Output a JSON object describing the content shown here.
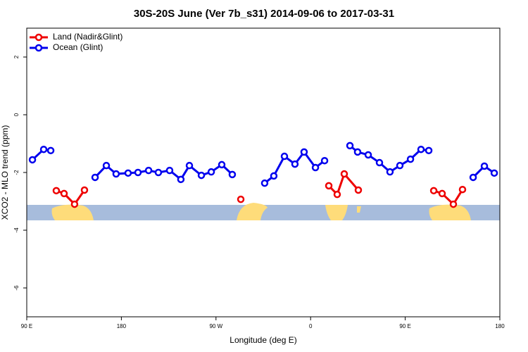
{
  "chart_data": {
    "type": "line",
    "title": "30S-20S June (Ver 7b_s31)   2014-09-06 to 2017-03-31",
    "x_label": "Longitude (deg E)",
    "y_label": "XCO2 - MLO trend (ppm)",
    "xlim": [
      90,
      540
    ],
    "ylim": [
      -7,
      3
    ],
    "xticks": [
      {
        "value": 90,
        "label": "90 E"
      },
      {
        "value": 180,
        "label": "180"
      },
      {
        "value": 270,
        "label": "90 W"
      },
      {
        "value": 360,
        "label": "0"
      },
      {
        "value": 450,
        "label": "90 E"
      },
      {
        "value": 540,
        "label": "180"
      }
    ],
    "yticks": [
      -6,
      -4,
      -2,
      0,
      2
    ],
    "legend": "top-left",
    "series": [
      {
        "name": "Land (Nadir&Glint)",
        "color": "#ee0000",
        "x": [
          118.1,
          125.5,
          135.5,
          144.9,
          null,
          293.6,
          null,
          377.3,
          385.3,
          392.0,
          405.4,
          null,
          477.1,
          485.1,
          495.8,
          504.5
        ],
        "values": [
          -2.63,
          -2.73,
          -3.1,
          -2.61,
          null,
          -2.93,
          null,
          -2.46,
          -2.76,
          -2.05,
          -2.61,
          null,
          -2.63,
          -2.73,
          -3.1,
          -2.59
        ]
      },
      {
        "name": "Ocean (Glint)",
        "color": "#0000ee",
        "x": [
          95.4,
          106.1,
          112.8,
          null,
          155.0,
          165.7,
          175.0,
          186.4,
          195.8,
          205.9,
          215.2,
          225.9,
          236.6,
          244.7,
          256.1,
          265.5,
          275.5,
          285.5,
          null,
          316.3,
          325.0,
          335.1,
          345.1,
          353.8,
          364.6,
          373.3,
          null,
          397.4,
          404.7,
          414.8,
          425.5,
          435.5,
          444.9,
          455.0,
          465.0,
          472.4,
          null,
          514.6,
          525.3,
          534.7
        ],
        "values": [
          -1.56,
          -1.2,
          -1.24,
          null,
          -2.17,
          -1.76,
          -2.05,
          -2.02,
          -2.0,
          -1.93,
          -2.0,
          -1.93,
          -2.24,
          -1.76,
          -2.1,
          -1.98,
          -1.73,
          -2.07,
          null,
          -2.37,
          -2.12,
          -1.44,
          -1.71,
          -1.29,
          -1.83,
          -1.59,
          null,
          -1.07,
          -1.29,
          -1.39,
          -1.66,
          -1.98,
          -1.76,
          -1.54,
          -1.2,
          -1.24,
          null,
          -2.17,
          -1.78,
          -2.02
        ]
      }
    ]
  }
}
